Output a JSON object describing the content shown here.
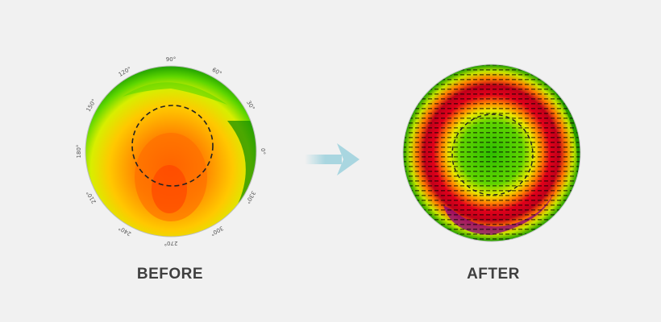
{
  "before": {
    "label": "BEFORE",
    "ticks": [
      "90°",
      "60°",
      "30°",
      "0°",
      "330°",
      "300°",
      "270°",
      "240°",
      "210°",
      "180°",
      "150°",
      "120°"
    ]
  },
  "after": {
    "label": "AFTER"
  },
  "colors": {
    "background": "#f1f1f1",
    "arrow": "#a9d6e0",
    "label": "#3f3f3f"
  },
  "icons": {
    "transition": "right-arrow-icon"
  }
}
